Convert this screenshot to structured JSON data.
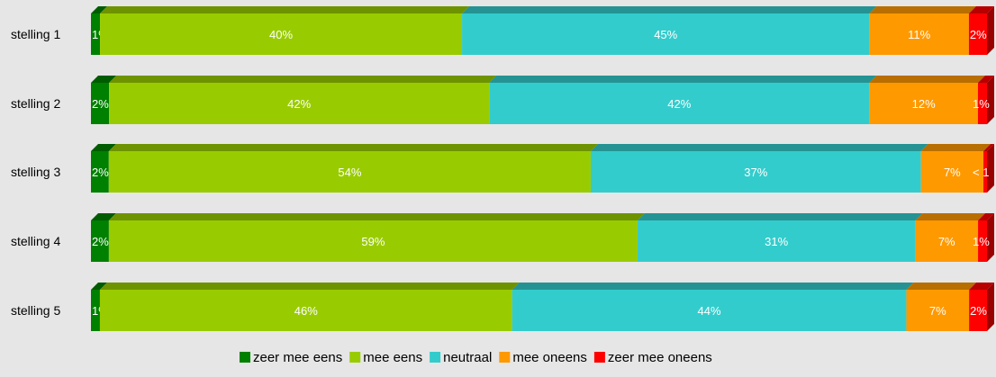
{
  "chart_data": {
    "type": "bar",
    "orientation": "horizontal",
    "stacked": "percent",
    "categories": [
      "stelling 1",
      "stelling 2",
      "stelling 3",
      "stelling 4",
      "stelling 5"
    ],
    "series": [
      {
        "name": "zeer mee eens",
        "color": "#008000",
        "values": [
          1,
          2,
          2,
          2,
          1
        ],
        "labels": [
          "1%",
          "2%",
          "2%",
          "2%",
          "1%"
        ]
      },
      {
        "name": "mee eens",
        "color": "#99cc00",
        "values": [
          40,
          42,
          54,
          59,
          46
        ],
        "labels": [
          "40%",
          "42%",
          "54%",
          "59%",
          "46%"
        ]
      },
      {
        "name": "neutraal",
        "color": "#33cccc",
        "values": [
          45,
          42,
          37,
          31,
          44
        ],
        "labels": [
          "45%",
          "42%",
          "37%",
          "31%",
          "44%"
        ]
      },
      {
        "name": "mee oneens",
        "color": "#ff9900",
        "values": [
          11,
          12,
          7,
          7,
          7
        ],
        "labels": [
          "11%",
          "12%",
          "7%",
          "7%",
          "7%"
        ]
      },
      {
        "name": "zeer mee oneens",
        "color": "#ff0000",
        "values": [
          2,
          1,
          0.4,
          1,
          2
        ],
        "labels": [
          "2%",
          "1%",
          "< 1",
          "1%",
          "2%"
        ]
      }
    ],
    "xlim": [
      0,
      100
    ],
    "legend": "bottom",
    "grid": false,
    "style": "3d"
  }
}
